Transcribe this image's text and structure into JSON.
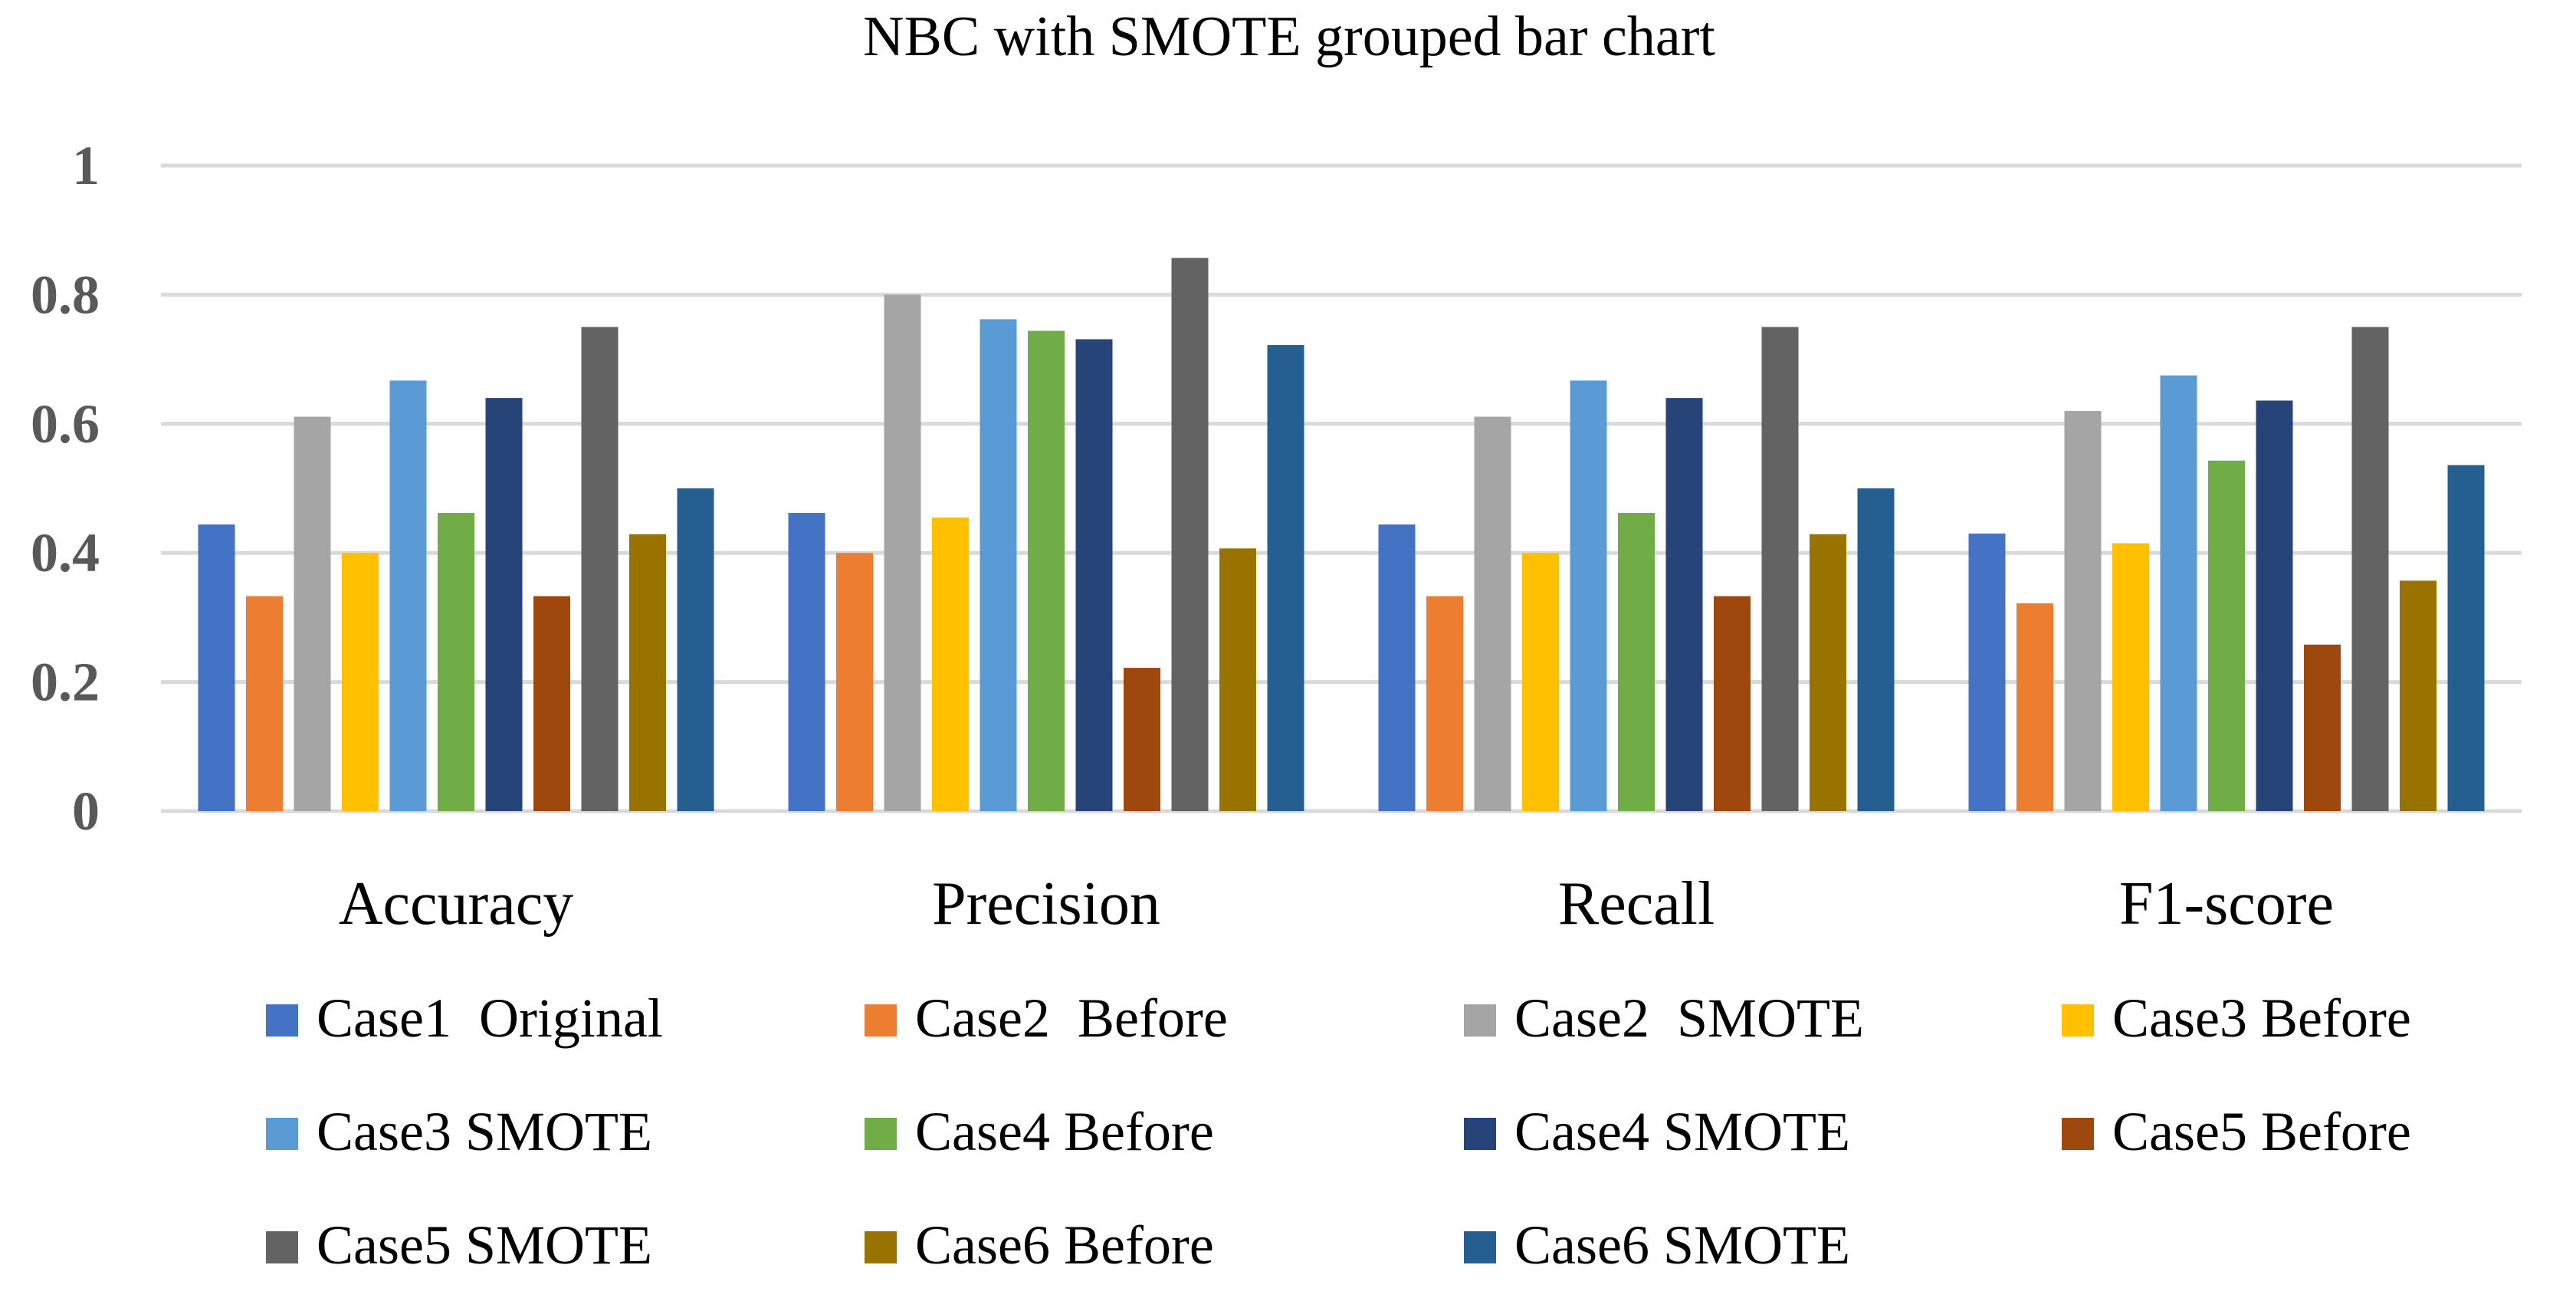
{
  "chart_data": {
    "type": "bar",
    "title": "NBC with SMOTE grouped bar chart",
    "xlabel": "",
    "ylabel": "",
    "ylim": [
      0,
      1
    ],
    "yticks": [
      "0",
      "0.2",
      "0.4",
      "0.6",
      "0.8",
      "1"
    ],
    "grid": true,
    "legend_position": "bottom",
    "categories": [
      "Accuracy",
      "Precision",
      "Recall",
      "F1-score"
    ],
    "series": [
      {
        "name": "Case1  Original",
        "color": "#4472C4",
        "values": [
          0.444,
          0.462,
          0.444,
          0.43
        ]
      },
      {
        "name": "Case2  Before",
        "color": "#ED7D31",
        "values": [
          0.333,
          0.4,
          0.333,
          0.322
        ]
      },
      {
        "name": "Case2  SMOTE",
        "color": "#A5A5A5",
        "values": [
          0.611,
          0.8,
          0.611,
          0.62
        ]
      },
      {
        "name": "Case3 Before",
        "color": "#FFC000",
        "values": [
          0.4,
          0.455,
          0.4,
          0.415
        ]
      },
      {
        "name": "Case3 SMOTE",
        "color": "#5B9BD5",
        "values": [
          0.667,
          0.762,
          0.667,
          0.675
        ]
      },
      {
        "name": "Case4 Before",
        "color": "#70AD47",
        "values": [
          0.462,
          0.744,
          0.462,
          0.543
        ]
      },
      {
        "name": "Case4 SMOTE",
        "color": "#264478",
        "values": [
          0.64,
          0.731,
          0.64,
          0.636
        ]
      },
      {
        "name": "Case5 Before",
        "color": "#9E480E",
        "values": [
          0.333,
          0.222,
          0.333,
          0.258
        ]
      },
      {
        "name": "Case5 SMOTE",
        "color": "#636363",
        "values": [
          0.75,
          0.857,
          0.75,
          0.75
        ]
      },
      {
        "name": "Case6 Before",
        "color": "#997300",
        "values": [
          0.429,
          0.407,
          0.429,
          0.357
        ]
      },
      {
        "name": "Case6 SMOTE",
        "color": "#255E91",
        "values": [
          0.5,
          0.722,
          0.5,
          0.536
        ]
      }
    ]
  }
}
